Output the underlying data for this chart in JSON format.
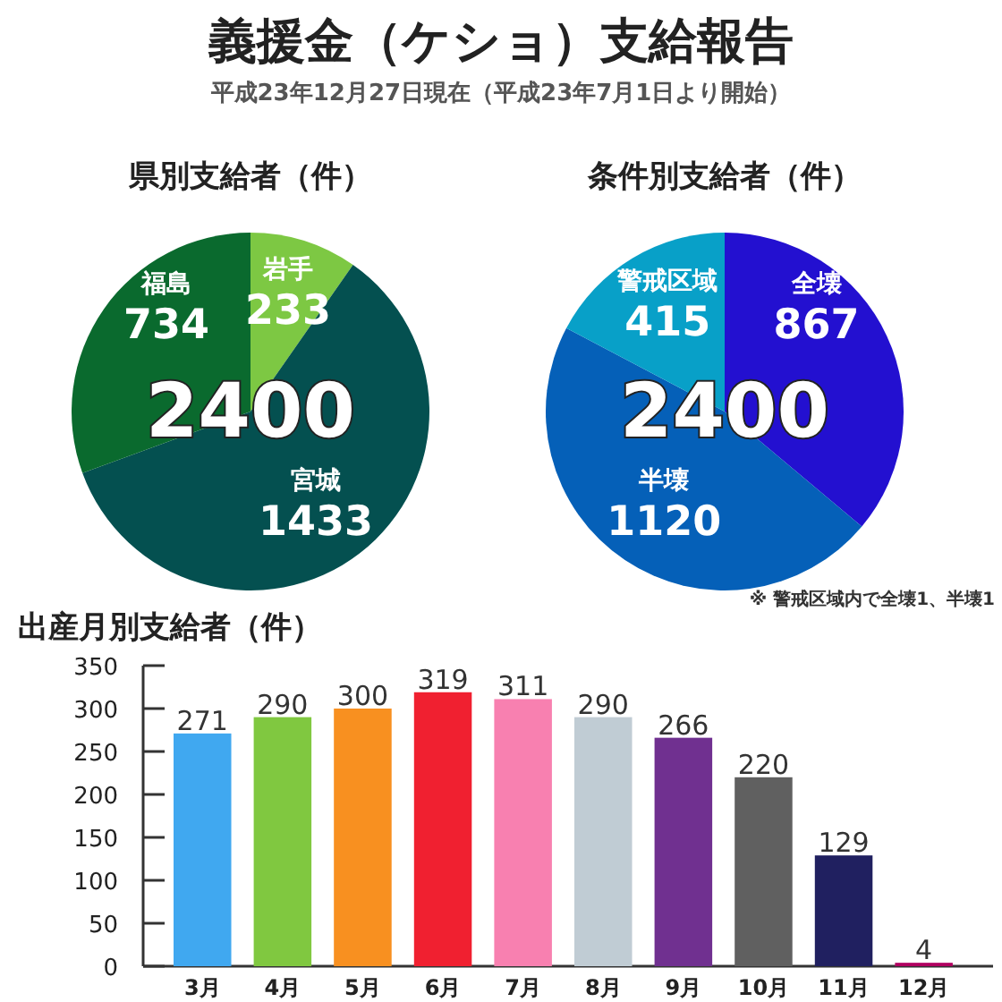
{
  "chart_data": [
    {
      "type": "other",
      "title": "義援金（ケショ）支給報告",
      "subtitle": "平成23年12月27日現在（平成23年7月1日より開始）"
    },
    {
      "type": "pie",
      "title": "県別支給者（件）",
      "categories": [
        "岩手",
        "宮城",
        "福島"
      ],
      "values": [
        233,
        1433,
        734
      ],
      "colors": [
        "#7dc843",
        "#045050",
        "#0a6a2e"
      ],
      "data_labels": true,
      "annotations": [
        "2400"
      ]
    },
    {
      "type": "pie",
      "title": "条件別支給者（件）",
      "categories": [
        "全壊",
        "半壊",
        "警戒区域"
      ],
      "values": [
        867,
        1120,
        415
      ],
      "colors": [
        "#2310d0",
        "#0560b8",
        "#08a0c8"
      ],
      "data_labels": true,
      "annotations": [
        "2400",
        "※ 警戒区域内で全壊1、半壊1"
      ]
    },
    {
      "type": "bar",
      "title": "出産月別支給者（件）",
      "categories": [
        "3月",
        "4月",
        "5月",
        "6月",
        "7月",
        "8月",
        "9月",
        "10月",
        "11月",
        "12月"
      ],
      "values": [
        271,
        290,
        300,
        319,
        311,
        290,
        266,
        220,
        129,
        4
      ],
      "colors": [
        "#40a8f0",
        "#80c840",
        "#f89020",
        "#f02030",
        "#f880b0",
        "#c0ccd4",
        "#703090",
        "#606060",
        "#202060",
        "#b00060"
      ],
      "ylim": [
        0,
        350
      ],
      "yticks": [
        0,
        50,
        100,
        150,
        200,
        250,
        300,
        350
      ],
      "data_labels": true
    }
  ]
}
